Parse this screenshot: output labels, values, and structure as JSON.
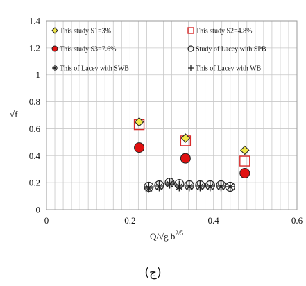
{
  "chart_data": {
    "type": "scatter",
    "xlabel": "Q/√g b",
    "xlabel_sup": "2/5",
    "ylabel": "√f",
    "xlim": [
      0,
      0.6
    ],
    "ylim": [
      0,
      1.4
    ],
    "xticks": [
      0,
      0.2,
      0.4,
      0.6
    ],
    "yticks": [
      0,
      0.2,
      0.4,
      0.6,
      0.8,
      1,
      1.2,
      1.4
    ],
    "x_tick_labels": [
      "0",
      "0.2",
      "0.4",
      "0.6"
    ],
    "y_tick_labels": [
      "0",
      "0.2",
      "0.4",
      "0.6",
      "0.8",
      "1",
      "1.2",
      "1.4"
    ],
    "grid": true,
    "legend_placement": "top, two columns inside plot",
    "series": [
      {
        "name": "This study S1=3%",
        "marker": "diamond",
        "color": "#f2e84a",
        "edge": "#222222",
        "x": [
          0.222,
          0.333,
          0.475
        ],
        "y": [
          0.65,
          0.53,
          0.44
        ]
      },
      {
        "name": "This study S2=4.8%",
        "marker": "square-open",
        "color": "#d92b2b",
        "edge": "#d92b2b",
        "x": [
          0.222,
          0.333,
          0.475
        ],
        "y": [
          0.63,
          0.51,
          0.36
        ]
      },
      {
        "name": "This study S3=7.6%",
        "marker": "circle-filled",
        "color": "#e01010",
        "edge": "#222222",
        "x": [
          0.222,
          0.333,
          0.475
        ],
        "y": [
          0.46,
          0.38,
          0.27
        ]
      },
      {
        "name": "Study of Lacey with SPB",
        "marker": "circle-open",
        "color": "#222222",
        "edge": "#222222",
        "x": [
          0.245,
          0.27,
          0.295,
          0.318,
          0.342,
          0.368,
          0.392,
          0.418,
          0.44
        ],
        "y": [
          0.17,
          0.18,
          0.2,
          0.19,
          0.18,
          0.18,
          0.18,
          0.18,
          0.17
        ]
      },
      {
        "name": "This of Lacey with SWB",
        "marker": "asterisk",
        "color": "#222222",
        "edge": "#222222",
        "x": [
          0.245,
          0.27,
          0.295,
          0.318,
          0.342,
          0.368,
          0.392,
          0.418,
          0.44
        ],
        "y": [
          0.16,
          0.17,
          0.19,
          0.17,
          0.17,
          0.17,
          0.17,
          0.17,
          0.17
        ]
      },
      {
        "name": "This of Lacey with WB",
        "marker": "plus",
        "color": "#222222",
        "edge": "#222222",
        "x": [
          0.245,
          0.27,
          0.295,
          0.318,
          0.342,
          0.368,
          0.392,
          0.418,
          0.44
        ],
        "y": [
          0.17,
          0.18,
          0.2,
          0.18,
          0.18,
          0.18,
          0.18,
          0.18,
          0.17
        ]
      }
    ],
    "caption": "(ج)"
  }
}
